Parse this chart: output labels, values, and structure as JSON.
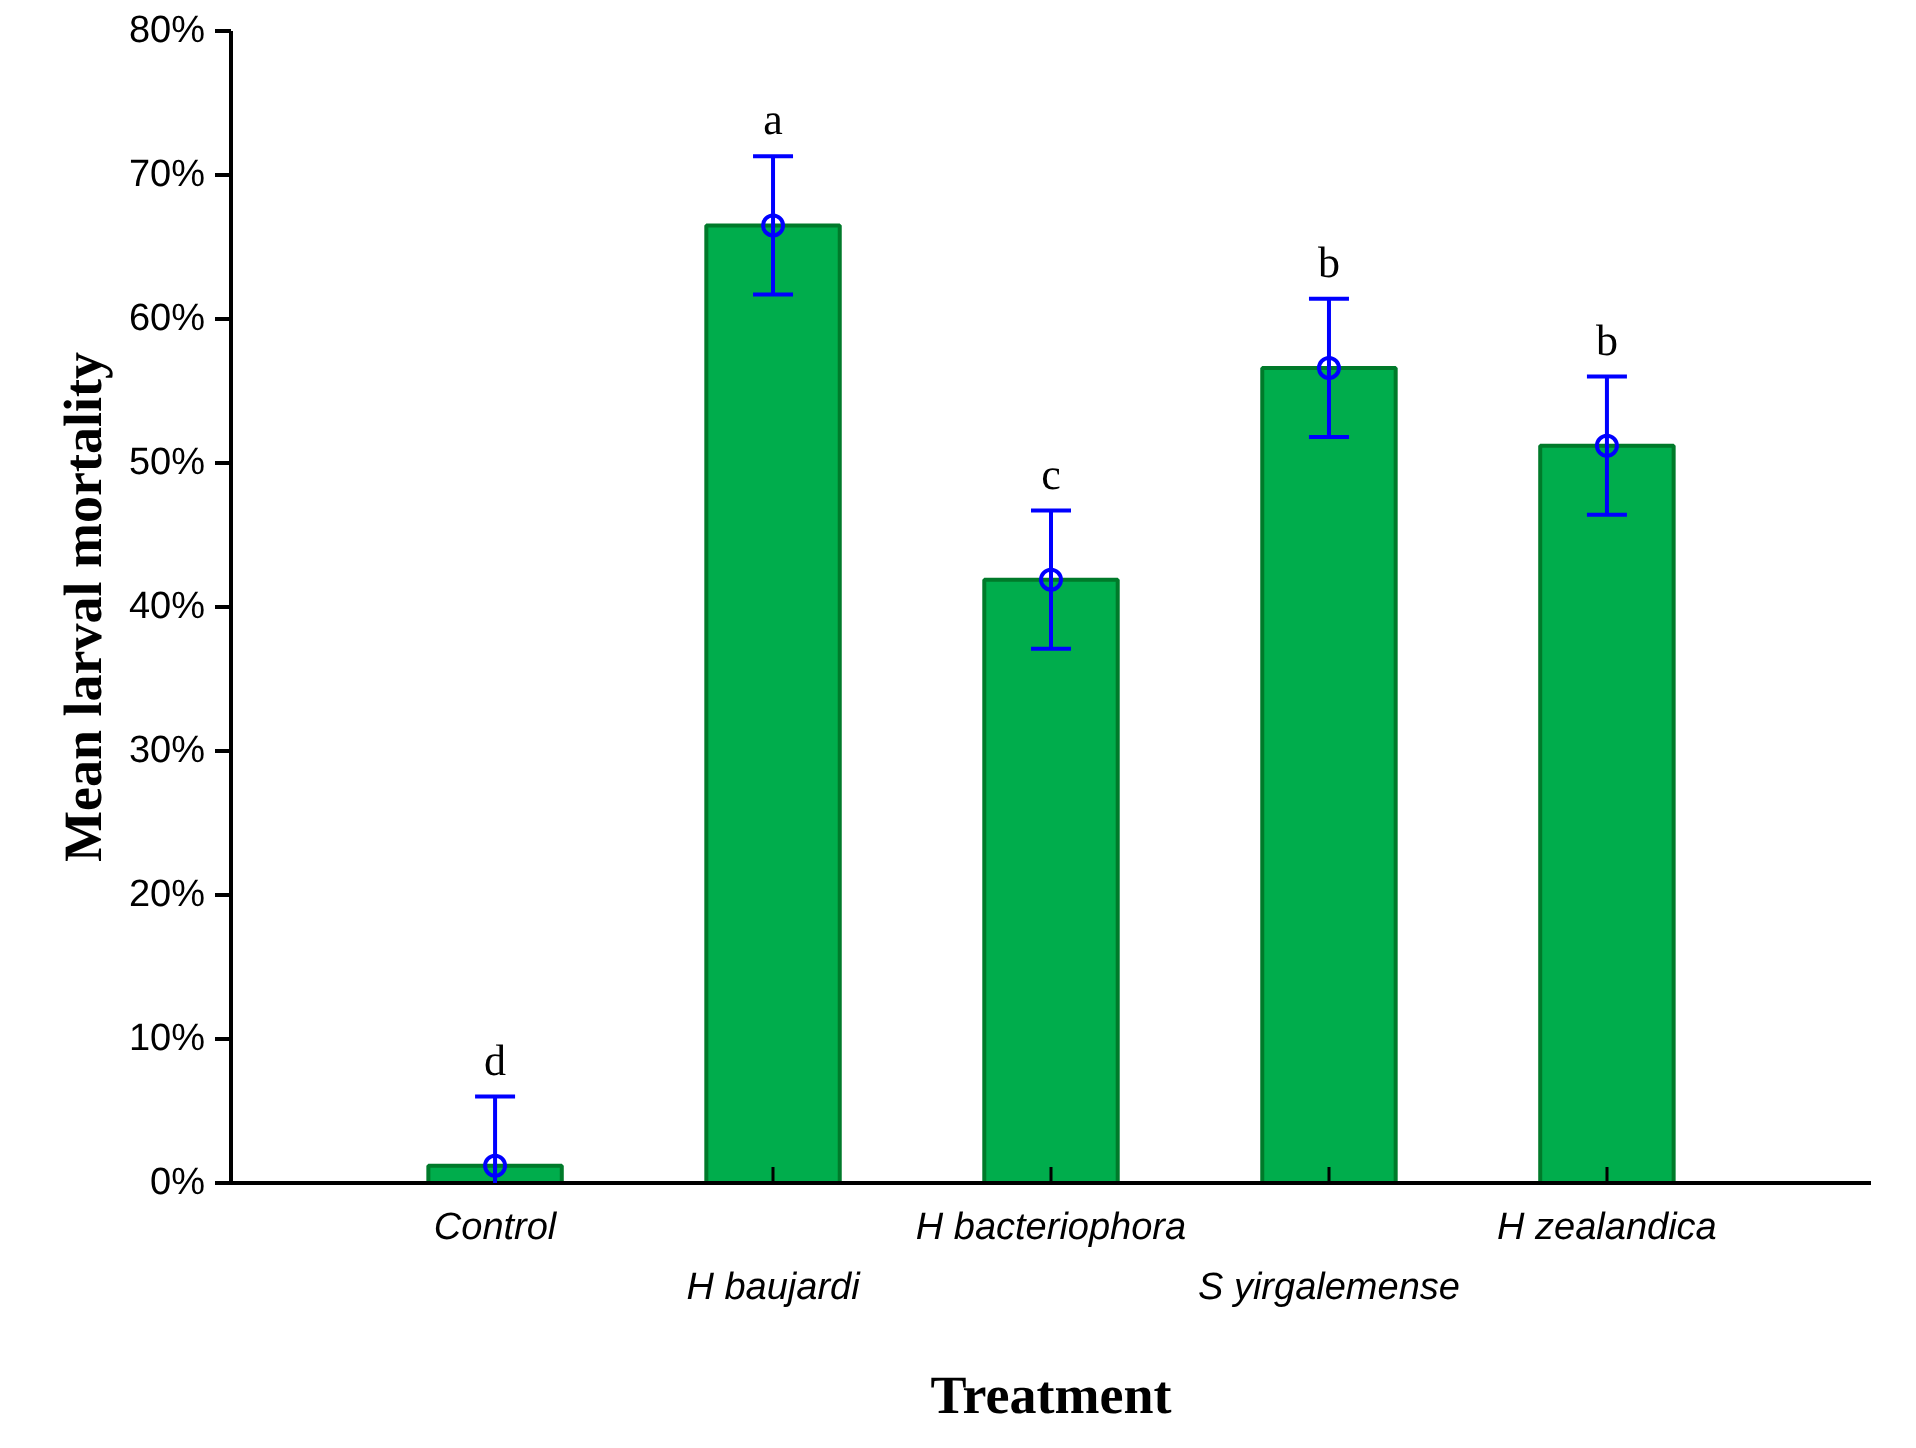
{
  "chart_data": {
    "type": "bar",
    "xlabel": "Treatment",
    "ylabel": "Mean larval mortality",
    "categories": [
      "Control",
      "H baujardi",
      "H bacteriophora",
      "S yirgalemense",
      "H zealandica"
    ],
    "series": [
      {
        "color": "#00ad4c",
        "values": [
          1.2,
          66.5,
          41.9,
          56.6,
          51.2
        ]
      },
      {
        "type": "scatter",
        "color": "#0000ff",
        "marker": "circle",
        "x": [
          "Control",
          "H baujardi",
          "H bacteriophora",
          "S yirgalemense",
          "H zealandica"
        ],
        "values": [
          1.2,
          66.5,
          41.9,
          56.6,
          51.2
        ],
        "errors": [
          4.8,
          4.8,
          4.8,
          4.8,
          4.8
        ]
      }
    ],
    "ylim": [
      0,
      80
    ],
    "yticks": [
      {
        "value": 0,
        "label": "0%"
      },
      {
        "value": 10,
        "label": "10%"
      },
      {
        "value": 20,
        "label": "20%"
      },
      {
        "value": 30,
        "label": "30%"
      },
      {
        "value": 40,
        "label": "40%"
      },
      {
        "value": 50,
        "label": "50%"
      },
      {
        "value": 60,
        "label": "60%"
      },
      {
        "value": 70,
        "label": "70%"
      },
      {
        "value": 80,
        "label": "80%"
      }
    ],
    "annotations": [
      {
        "text": "d",
        "x": "Control",
        "y": 6.0
      },
      {
        "text": "a",
        "x": "H baujardi",
        "y": 71.3
      },
      {
        "text": "c",
        "x": "H bacteriophora",
        "y": 46.7
      },
      {
        "text": "b",
        "x": "S yirgalemense",
        "y": 61.4
      },
      {
        "text": "b",
        "x": "H zealandica",
        "y": 56.0
      }
    ],
    "grid": false
  }
}
